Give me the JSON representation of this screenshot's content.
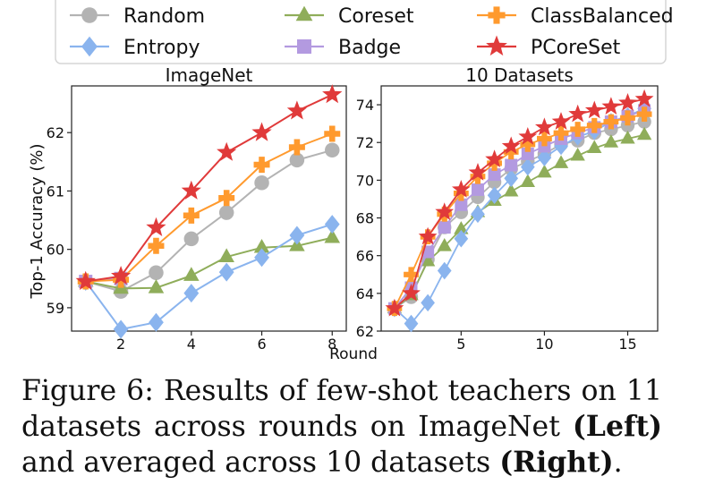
{
  "legend": {
    "items": [
      {
        "name": "Random",
        "color": "#b3b3b3",
        "marker": "circle"
      },
      {
        "name": "Coreset",
        "color": "#8fad5a",
        "marker": "triangle"
      },
      {
        "name": "ClassBalanced",
        "color": "#ff9a2e",
        "marker": "plus"
      },
      {
        "name": "Entropy",
        "color": "#8ab4ee",
        "marker": "diamond"
      },
      {
        "name": "Badge",
        "color": "#b39ae0",
        "marker": "square"
      },
      {
        "name": "PCoreSet",
        "color": "#e03a3a",
        "marker": "star"
      }
    ]
  },
  "shared_xlabel": "Round",
  "chart_data": [
    {
      "type": "line",
      "title": "ImageNet",
      "ylabel": "Top-1 Accuracy (%)",
      "xlabel": "",
      "x": [
        1,
        2,
        3,
        4,
        5,
        6,
        7,
        8
      ],
      "xlim": [
        0.6,
        8.4
      ],
      "ylim": [
        58.6,
        62.8
      ],
      "xticks": [
        2,
        4,
        6,
        8
      ],
      "yticks": [
        59,
        60,
        61,
        62
      ],
      "series": [
        {
          "name": "Random",
          "values": [
            59.45,
            59.28,
            59.6,
            60.18,
            60.63,
            61.14,
            61.53,
            61.7
          ]
        },
        {
          "name": "Coreset",
          "values": [
            59.45,
            59.33,
            59.34,
            59.55,
            59.87,
            60.03,
            60.06,
            60.2
          ]
        },
        {
          "name": "ClassBalanced",
          "values": [
            59.45,
            59.48,
            60.06,
            60.58,
            60.88,
            61.45,
            61.75,
            61.98
          ]
        },
        {
          "name": "Entropy",
          "values": [
            59.45,
            58.63,
            58.75,
            59.25,
            59.61,
            59.86,
            60.24,
            60.43
          ]
        },
        {
          "name": "Badge",
          "values": [
            59.45,
            59.5,
            null,
            null,
            null,
            null,
            null,
            null
          ]
        },
        {
          "name": "PCoreSet",
          "values": [
            59.45,
            59.54,
            60.37,
            61.0,
            61.66,
            62.0,
            62.37,
            62.65
          ]
        }
      ]
    },
    {
      "type": "line",
      "title": "10 Datasets",
      "ylabel": "",
      "xlabel": "",
      "x": [
        1,
        2,
        3,
        4,
        5,
        6,
        7,
        8,
        9,
        10,
        11,
        12,
        13,
        14,
        15,
        16
      ],
      "xlim": [
        0.2,
        16.8
      ],
      "ylim": [
        62,
        75
      ],
      "xticks": [
        5,
        10,
        15
      ],
      "yticks": [
        62,
        64,
        66,
        68,
        70,
        72,
        74
      ],
      "series": [
        {
          "name": "Random",
          "values": [
            63.2,
            63.8,
            65.8,
            67.5,
            68.3,
            69.1,
            69.9,
            70.6,
            71.0,
            71.4,
            71.9,
            72.1,
            72.5,
            72.7,
            72.9,
            73.1
          ]
        },
        {
          "name": "Coreset",
          "values": [
            63.2,
            63.9,
            65.7,
            66.5,
            67.4,
            68.3,
            68.9,
            69.4,
            69.9,
            70.4,
            70.9,
            71.3,
            71.7,
            72.0,
            72.2,
            72.4
          ]
        },
        {
          "name": "ClassBalanced",
          "values": [
            63.2,
            65.0,
            67.0,
            68.2,
            69.3,
            70.2,
            70.9,
            71.5,
            71.9,
            72.2,
            72.5,
            72.7,
            72.9,
            73.1,
            73.3,
            73.5
          ]
        },
        {
          "name": "Entropy",
          "values": [
            63.2,
            62.4,
            63.5,
            65.2,
            66.9,
            68.2,
            69.2,
            70.1,
            70.7,
            71.2,
            71.8,
            72.3,
            72.6,
            73.1,
            73.4,
            73.8
          ]
        },
        {
          "name": "Badge",
          "values": [
            63.2,
            64.3,
            66.2,
            67.5,
            68.7,
            69.5,
            70.3,
            70.8,
            71.4,
            71.8,
            72.2,
            72.5,
            72.8,
            73.1,
            73.4,
            73.7
          ]
        },
        {
          "name": "PCoreSet",
          "values": [
            63.2,
            64.0,
            67.0,
            68.3,
            69.5,
            70.4,
            71.1,
            71.8,
            72.3,
            72.8,
            73.1,
            73.5,
            73.7,
            73.9,
            74.1,
            74.3
          ]
        }
      ]
    }
  ],
  "caption": {
    "label": "Figure 6:",
    "text_before": " Results of few-shot teachers on 11 datasets across rounds on ImageNet ",
    "left": "(Left)",
    "text_middle": " and averaged across 10 datasets ",
    "right": "(Right)",
    "text_after": "."
  }
}
